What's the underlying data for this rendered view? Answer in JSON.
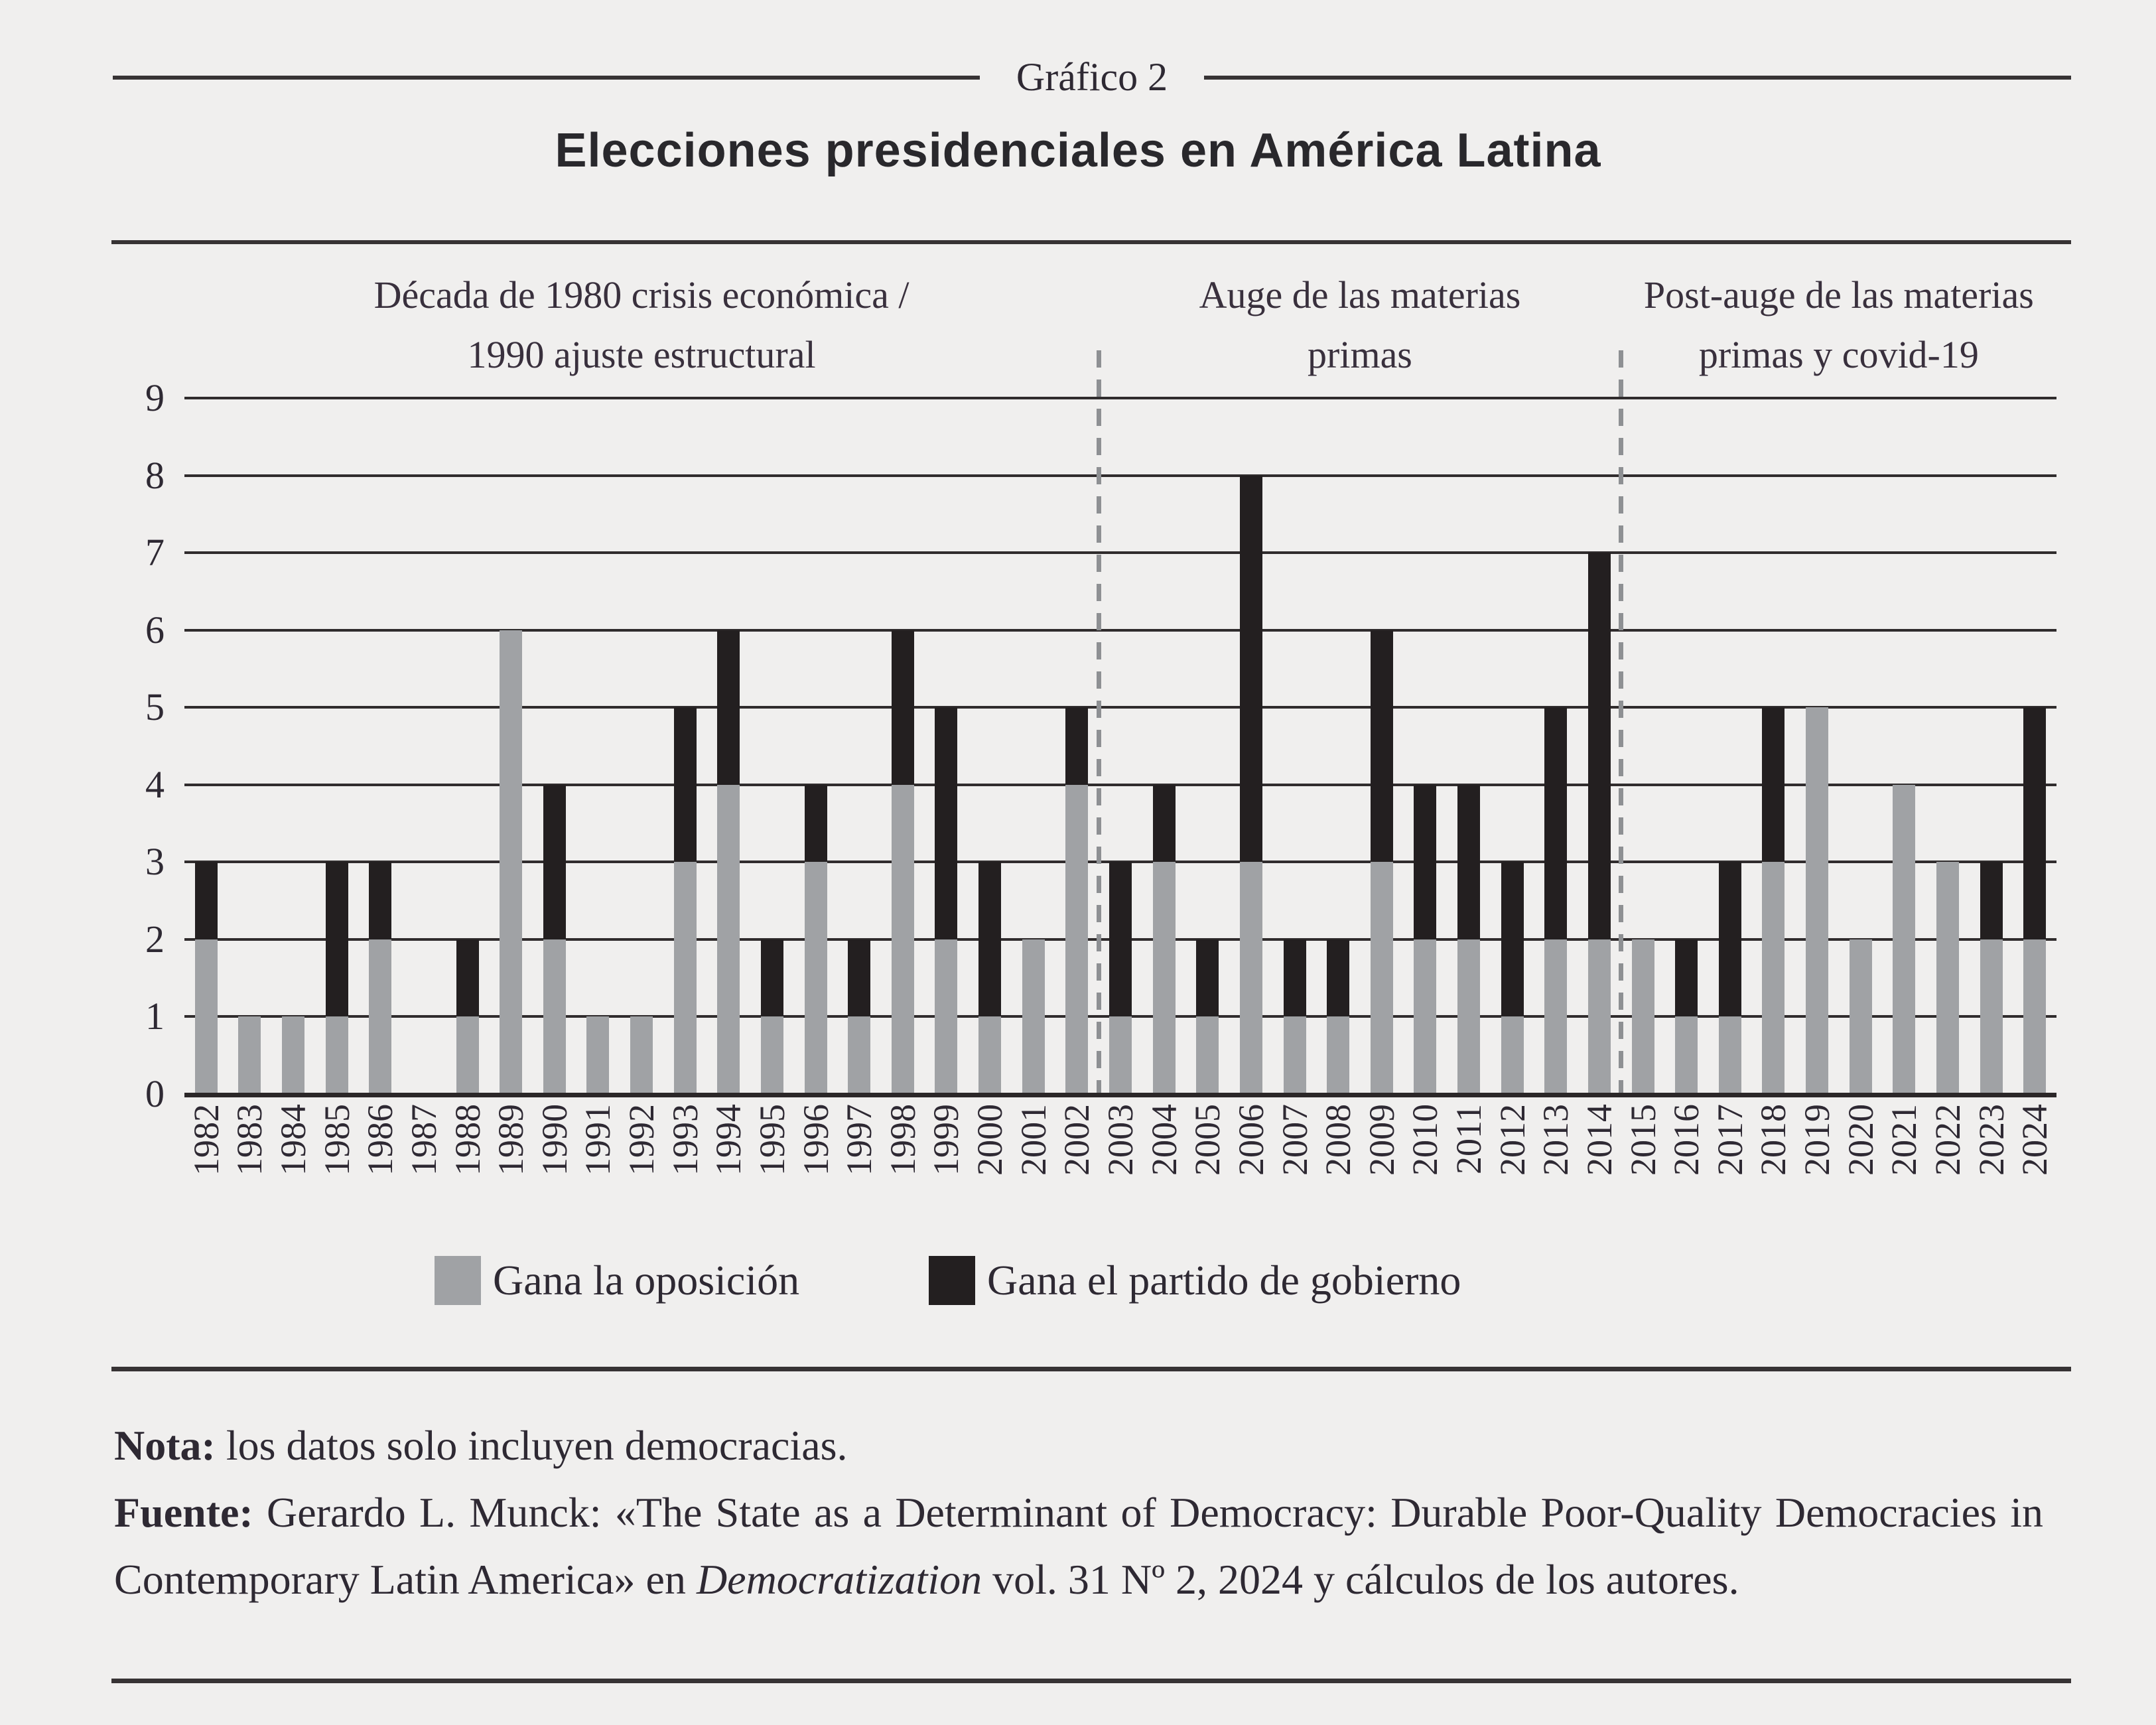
{
  "header": {
    "kicker": "Gráfico 2",
    "title": "Elecciones presidenciales en América Latina"
  },
  "chart_data": {
    "type": "bar",
    "stacked": true,
    "title": "Elecciones presidenciales en América Latina",
    "xlabel": "",
    "ylabel": "",
    "ylim": [
      0,
      9
    ],
    "yticks": [
      0,
      1,
      2,
      3,
      4,
      5,
      6,
      7,
      8,
      9
    ],
    "grid": true,
    "legend_position": "bottom",
    "categories": [
      "1982",
      "1983",
      "1984",
      "1985",
      "1986",
      "1987",
      "1988",
      "1989",
      "1990",
      "1991",
      "1992",
      "1993",
      "1994",
      "1995",
      "1996",
      "1997",
      "1998",
      "1999",
      "2000",
      "2001",
      "2002",
      "2003",
      "2004",
      "2005",
      "2006",
      "2007",
      "2008",
      "2009",
      "2010",
      "2011",
      "2012",
      "2013",
      "2014",
      "2015",
      "2016",
      "2017",
      "2018",
      "2019",
      "2020",
      "2021",
      "2022",
      "2023",
      "2024"
    ],
    "series": [
      {
        "name": "Gana la oposición",
        "color": "#a0a2a5",
        "values": [
          2,
          1,
          1,
          1,
          2,
          0,
          1,
          6,
          2,
          1,
          1,
          3,
          4,
          1,
          3,
          1,
          4,
          2,
          1,
          2,
          4,
          1,
          3,
          1,
          3,
          1,
          1,
          3,
          2,
          2,
          1,
          2,
          2,
          2,
          1,
          1,
          3,
          5,
          2,
          4,
          3,
          2,
          2
        ]
      },
      {
        "name": "Gana el partido de gobierno",
        "color": "#231f20",
        "values": [
          1,
          0,
          0,
          2,
          1,
          0,
          1,
          0,
          2,
          0,
          0,
          2,
          2,
          1,
          1,
          1,
          2,
          3,
          2,
          0,
          1,
          2,
          1,
          1,
          5,
          1,
          1,
          3,
          2,
          2,
          2,
          3,
          5,
          0,
          1,
          2,
          2,
          0,
          0,
          0,
          0,
          1,
          3
        ]
      }
    ],
    "totals": [
      3,
      1,
      1,
      3,
      3,
      0,
      2,
      6,
      4,
      1,
      1,
      5,
      6,
      2,
      4,
      2,
      6,
      5,
      3,
      2,
      5,
      3,
      4,
      2,
      8,
      2,
      2,
      6,
      4,
      4,
      3,
      5,
      7,
      2,
      2,
      3,
      5,
      5,
      2,
      4,
      3,
      3,
      5
    ],
    "dividers_after": [
      "2002",
      "2014"
    ],
    "annotations": [
      {
        "lines": [
          "Década de 1980 crisis económica /",
          "1990 ajuste estructural"
        ]
      },
      {
        "lines": [
          "Auge de las materias",
          "primas"
        ]
      },
      {
        "lines": [
          "Post-auge de las materias",
          "primas y covid-19"
        ]
      }
    ]
  },
  "footer": {
    "note_label": "Nota:",
    "note_text": " los datos solo incluyen democracias.",
    "source_label": "Fuente:",
    "source_before_italic": " Gerardo L. Munck: «The State as a Determinant of Democracy: Durable Poor-Quality Democracies in Contemporary Latin America» en ",
    "source_italic": "Democratization",
    "source_after_italic": " vol. 31 Nº 2, 2024 y cálculos de los autores."
  }
}
